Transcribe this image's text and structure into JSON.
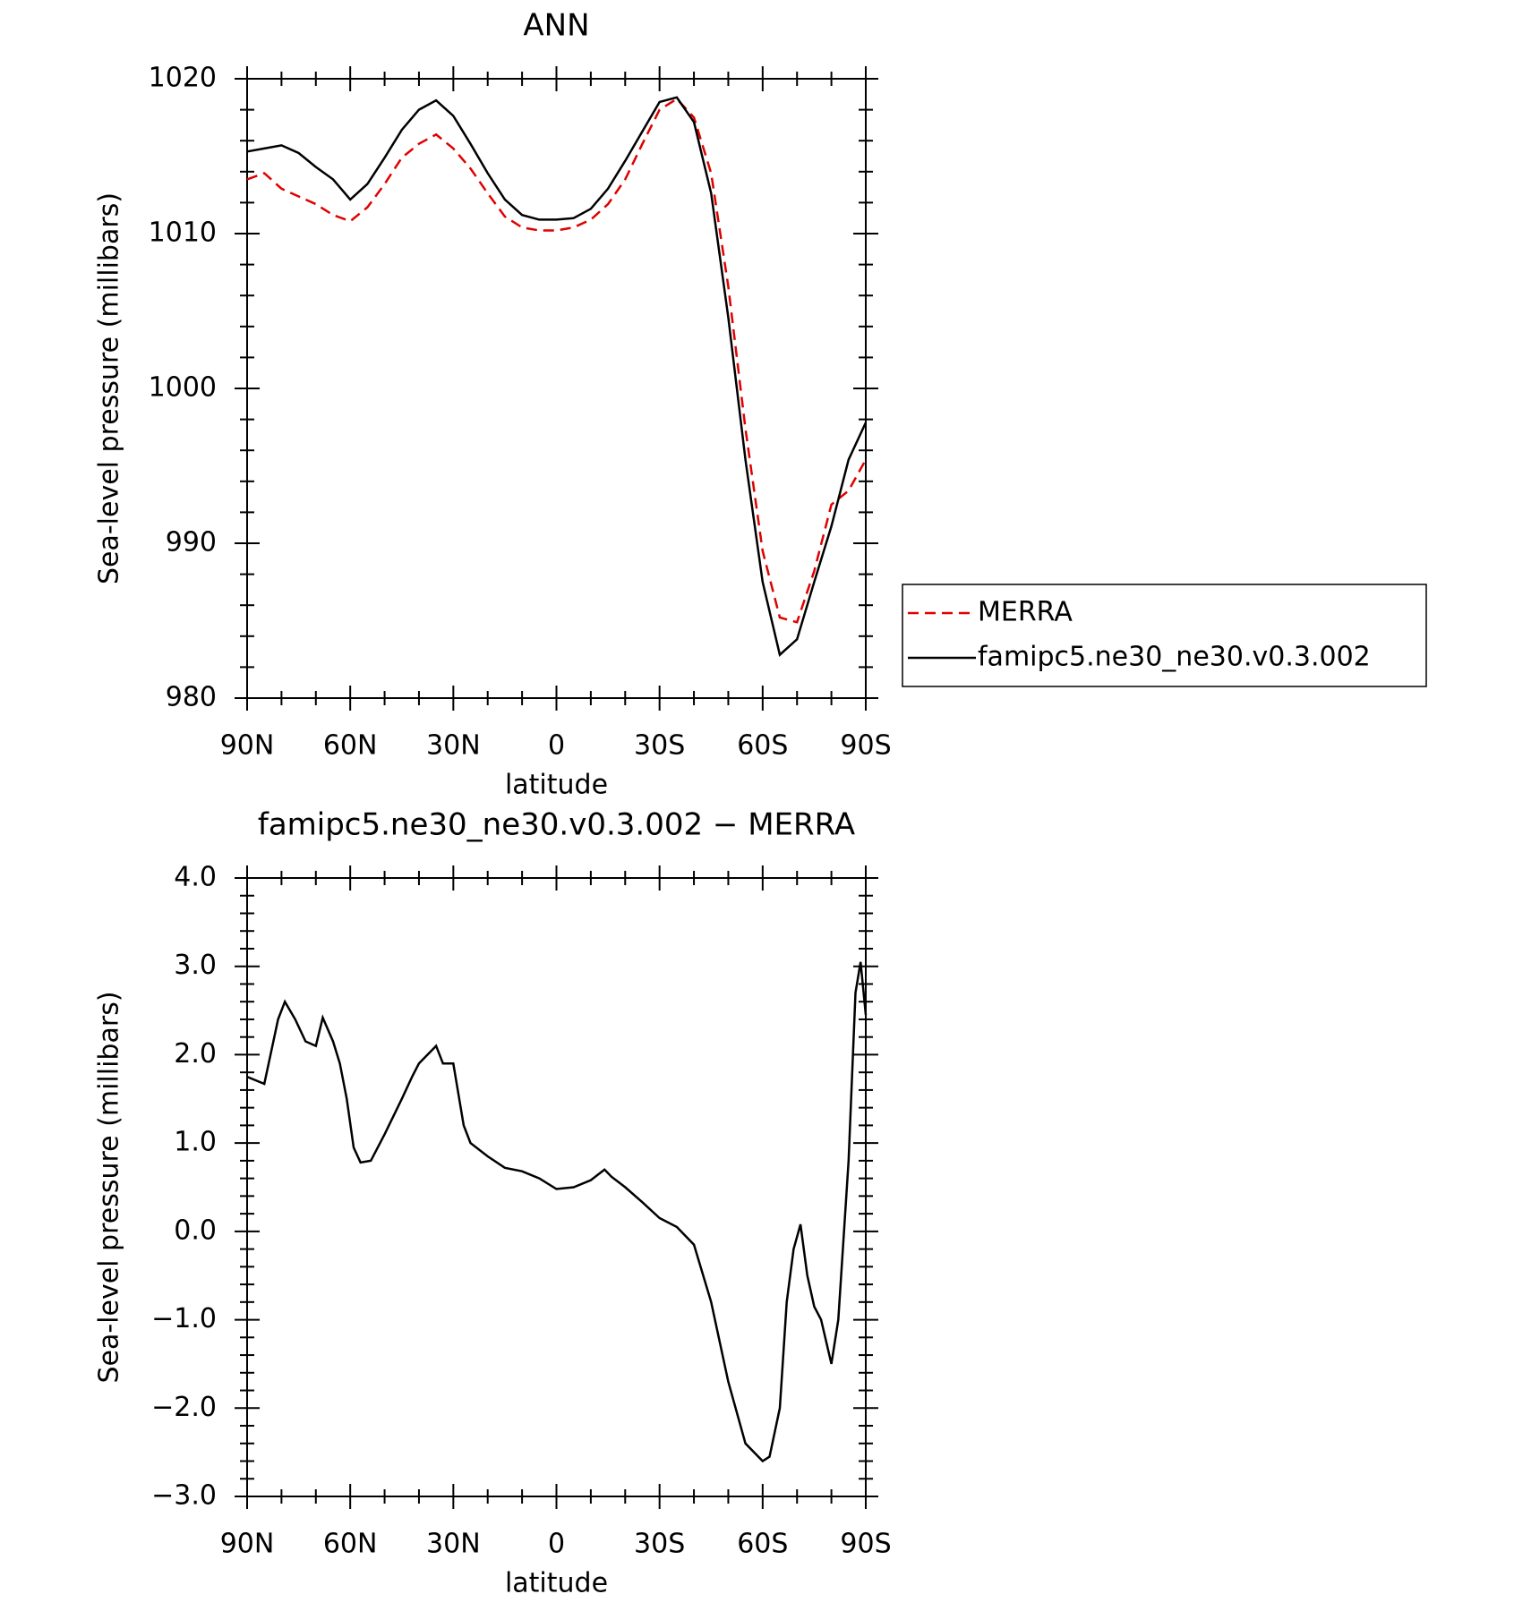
{
  "chart_data": [
    {
      "type": "line",
      "title": "ANN",
      "xlabel": "latitude",
      "ylabel": "Sea-level pressure (millibars)",
      "x": [
        90,
        85,
        80,
        75,
        70,
        65,
        60,
        55,
        50,
        45,
        40,
        35,
        30,
        25,
        20,
        15,
        10,
        5,
        0,
        -5,
        -10,
        -15,
        -20,
        -25,
        -30,
        -35,
        -40,
        -45,
        -50,
        -55,
        -60,
        -65,
        -70,
        -75,
        -80,
        -85,
        -90
      ],
      "series": [
        {
          "name": "MERRA",
          "color": "#e00000",
          "linestyle": "dashed",
          "values": [
            1013.5,
            1013.9,
            1012.9,
            1012.4,
            1011.9,
            1011.2,
            1010.8,
            1011.7,
            1013.2,
            1014.9,
            1015.8,
            1016.4,
            1015.5,
            1014.2,
            1012.6,
            1011.1,
            1010.4,
            1010.2,
            1010.2,
            1010.4,
            1010.9,
            1011.9,
            1013.5,
            1015.8,
            1018.0,
            1018.7,
            1017.5,
            1013.9,
            1006.6,
            997.4,
            989.5,
            985.2,
            984.9,
            988.2,
            992.5,
            993.4,
            995.4
          ]
        },
        {
          "name": "famipc5.ne30_ne30.v0.3.002",
          "color": "#000000",
          "linestyle": "solid",
          "values": [
            1015.3,
            1015.5,
            1015.7,
            1015.2,
            1014.3,
            1013.5,
            1012.2,
            1013.2,
            1014.9,
            1016.7,
            1018.0,
            1018.6,
            1017.6,
            1015.8,
            1013.9,
            1012.2,
            1011.2,
            1010.9,
            1010.9,
            1011.0,
            1011.6,
            1012.9,
            1014.7,
            1016.6,
            1018.5,
            1018.8,
            1017.2,
            1012.6,
            1004.6,
            995.4,
            987.5,
            982.8,
            983.8,
            987.5,
            991.1,
            995.4,
            997.8
          ]
        }
      ],
      "xlim": [
        90,
        -90
      ],
      "ylim": [
        980,
        1020
      ],
      "xticks": [
        {
          "value": 90,
          "label": "90N"
        },
        {
          "value": 60,
          "label": "60N"
        },
        {
          "value": 30,
          "label": "30N"
        },
        0,
        {
          "value": -30,
          "label": "30S"
        },
        {
          "value": -60,
          "label": "60S"
        },
        {
          "value": -90,
          "label": "90S"
        }
      ],
      "yticks": [
        980,
        990,
        1000,
        1010,
        1020
      ],
      "legend": "outside-right"
    },
    {
      "type": "line",
      "title": "famipc5.ne30_ne30.v0.3.002 − MERRA",
      "xlabel": "latitude",
      "ylabel": "Sea-level pressure (millibars)",
      "x": [
        90,
        85,
        81,
        79,
        76,
        73,
        70,
        68,
        65,
        63,
        61,
        59,
        57,
        54,
        50,
        45,
        42,
        40,
        35,
        33,
        30,
        27,
        25,
        20,
        15,
        10,
        5,
        0,
        -5,
        -10,
        -14,
        -16,
        -20,
        -25,
        -30,
        -35,
        -40,
        -45,
        -50,
        -55,
        -60,
        -62,
        -65,
        -67,
        -69,
        -71,
        -73,
        -75,
        -77,
        -80,
        -82,
        -85,
        -87,
        -88.5,
        -90
      ],
      "series": [
        {
          "color": "#000000",
          "linestyle": "solid",
          "values": [
            1.75,
            1.67,
            2.4,
            2.6,
            2.4,
            2.15,
            2.1,
            2.42,
            2.15,
            1.9,
            1.5,
            0.95,
            0.78,
            0.8,
            1.1,
            1.5,
            1.75,
            1.9,
            2.1,
            1.9,
            1.9,
            1.2,
            1.0,
            0.85,
            0.72,
            0.68,
            0.6,
            0.48,
            0.5,
            0.58,
            0.7,
            0.62,
            0.5,
            0.33,
            0.15,
            0.05,
            -0.15,
            -0.8,
            -1.7,
            -2.4,
            -2.6,
            -2.55,
            -2.0,
            -0.8,
            -0.2,
            0.08,
            -0.5,
            -0.85,
            -1.0,
            -1.5,
            -1.0,
            0.8,
            2.7,
            3.05,
            2.45
          ]
        }
      ],
      "xlim": [
        90,
        -90
      ],
      "ylim": [
        -3,
        4
      ],
      "xticks": [
        {
          "value": 90,
          "label": "90N"
        },
        {
          "value": 60,
          "label": "60N"
        },
        {
          "value": 30,
          "label": "30N"
        },
        0,
        {
          "value": -30,
          "label": "30S"
        },
        {
          "value": -60,
          "label": "60S"
        },
        {
          "value": -90,
          "label": "90S"
        }
      ],
      "yticks": [
        {
          "value": -3,
          "label": "−3.0"
        },
        {
          "value": -2,
          "label": "−2.0"
        },
        {
          "value": -1,
          "label": "−1.0"
        },
        {
          "value": 0,
          "label": "0.0"
        },
        {
          "value": 1,
          "label": "1.0"
        },
        {
          "value": 2,
          "label": "2.0"
        },
        {
          "value": 3,
          "label": "3.0"
        },
        {
          "value": 4,
          "label": "4.0"
        }
      ]
    }
  ]
}
